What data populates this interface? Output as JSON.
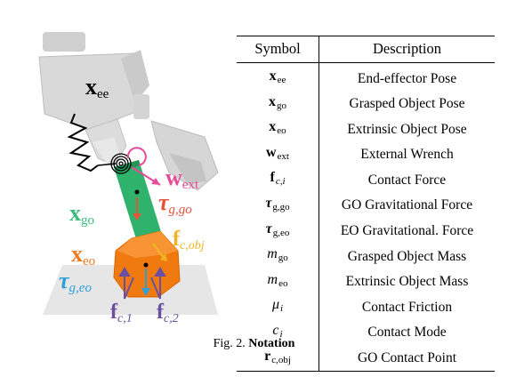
{
  "figure": {
    "labels": {
      "x_ee": {
        "base": "x",
        "sub": "ee"
      },
      "w_ext": {
        "base": "w",
        "sub": "ext"
      },
      "x_go": {
        "base": "x",
        "sub": "go"
      },
      "tau_go": {
        "base": "τ",
        "sub": "g,go"
      },
      "f_obj": {
        "base": "f",
        "sub": "c,obj"
      },
      "x_eo": {
        "base": "x",
        "sub": "eo"
      },
      "tau_eo": {
        "base": "τ",
        "sub": "g,eo"
      },
      "f_c1": {
        "base": "f",
        "sub": "c,1"
      },
      "f_c2": {
        "base": "f",
        "sub": "c,2"
      }
    },
    "colors": {
      "x_go": "#3dbb7e",
      "w_ext": "#e64b9a",
      "tau_go": "#e5533a",
      "f_obj": "#f0b323",
      "x_eo": "#f07a1f",
      "tau_eo": "#2f9fd8",
      "f_c": "#6b4ea0",
      "green_object": "#2fb36c",
      "orange_object": "#f07a10"
    }
  },
  "table": {
    "headers": [
      "Symbol",
      "Description"
    ],
    "rows": [
      {
        "symbol": {
          "base": "x",
          "sub": "ee",
          "style": "bold"
        },
        "description": "End-effector Pose"
      },
      {
        "symbol": {
          "base": "x",
          "sub": "go",
          "style": "bold"
        },
        "description": "Grasped Object Pose"
      },
      {
        "symbol": {
          "base": "x",
          "sub": "eo",
          "style": "bold"
        },
        "description": "Extrinsic Object Pose"
      },
      {
        "symbol": {
          "base": "w",
          "sub": "ext",
          "style": "bold"
        },
        "description": "External Wrench"
      },
      {
        "symbol": {
          "base": "f",
          "sub": "c,i",
          "style": "bold"
        },
        "description": "Contact Force"
      },
      {
        "symbol": {
          "base": "τ",
          "sub": "g,go",
          "style": "bold-italic"
        },
        "description": "GO Gravitational Force"
      },
      {
        "symbol": {
          "base": "τ",
          "sub": "g,eo",
          "style": "bold-italic"
        },
        "description": "EO Gravitational. Force"
      },
      {
        "symbol": {
          "base": "m",
          "sub": "go",
          "style": "italic"
        },
        "description": "Grasped Object Mass"
      },
      {
        "symbol": {
          "base": "m",
          "sub": "eo",
          "style": "italic"
        },
        "description": "Extrinsic Object Mass"
      },
      {
        "symbol": {
          "base": "μ",
          "sub": "i",
          "style": "italic"
        },
        "description": "Contact Friction"
      },
      {
        "symbol": {
          "base": "c",
          "sub": "i",
          "style": "italic"
        },
        "description": "Contact Mode"
      },
      {
        "symbol": {
          "base": "r",
          "sub": "c,obj",
          "style": "bold"
        },
        "description": "GO Contact Point"
      }
    ]
  },
  "caption": {
    "prefix": "Fig. 2.",
    "title": "Notation"
  }
}
